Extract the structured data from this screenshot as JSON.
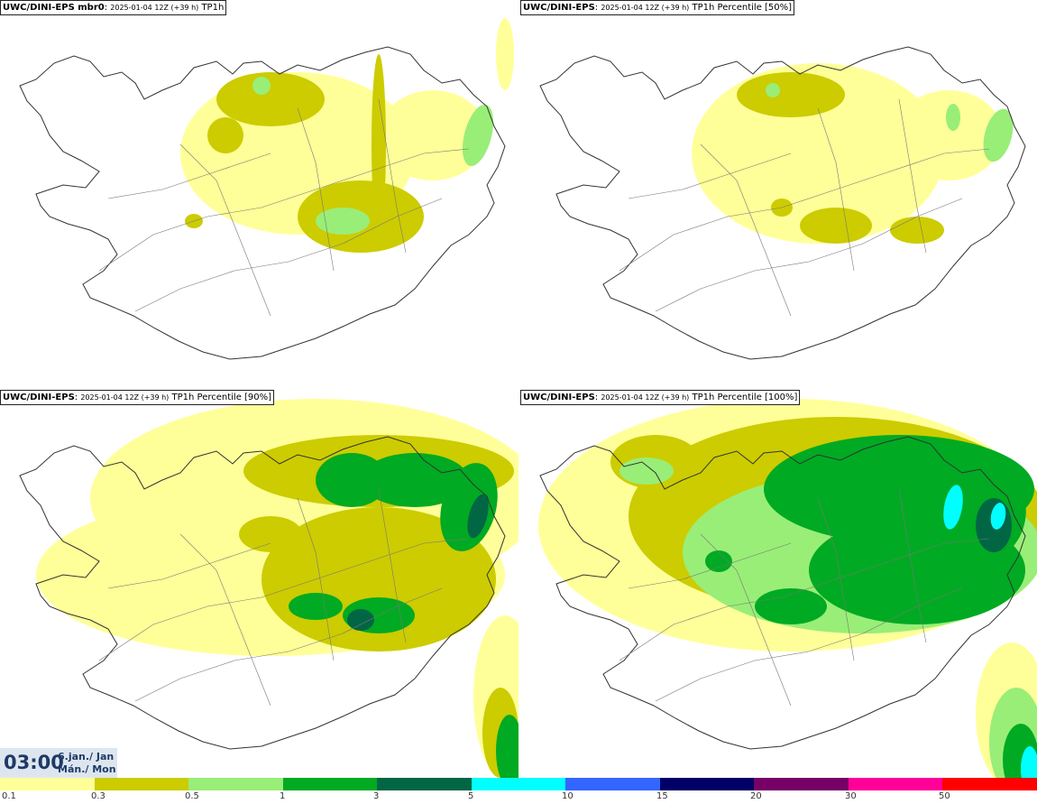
{
  "panels": [
    {
      "title_bold": "UWC/DINI-EPS mbr0",
      "title_date": "2025-01-04 12Z (+39 h)",
      "title_field": "TP1h"
    },
    {
      "title_bold": "UWC/DINI-EPS",
      "title_date": "2025-01-04 12Z (+39 h)",
      "title_field": "TP1h Percentile [50%]"
    },
    {
      "title_bold": "UWC/DINI-EPS",
      "title_date": "2025-01-04 12Z (+39 h)",
      "title_field": "TP1h Percentile [90%]"
    },
    {
      "title_bold": "UWC/DINI-EPS",
      "title_date": "2025-01-04 12Z (+39 h)",
      "title_field": "TP1h Percentile [100%]"
    }
  ],
  "valid_time": {
    "time": "03:00",
    "date_line1": "6.jan./ Jan",
    "date_line2": "Mán./ Mon"
  },
  "legend": {
    "ticks": [
      "0.1",
      "0.3",
      "0.5",
      "1",
      "3",
      "5",
      "10",
      "15",
      "20",
      "30",
      "50"
    ],
    "colors": [
      "#ffff99",
      "#cccc00",
      "#99ee77",
      "#00aa22",
      "#006644",
      "#00ffff",
      "#3366ff",
      "#000066",
      "#770066",
      "#ff0099",
      "#ff0000"
    ]
  }
}
